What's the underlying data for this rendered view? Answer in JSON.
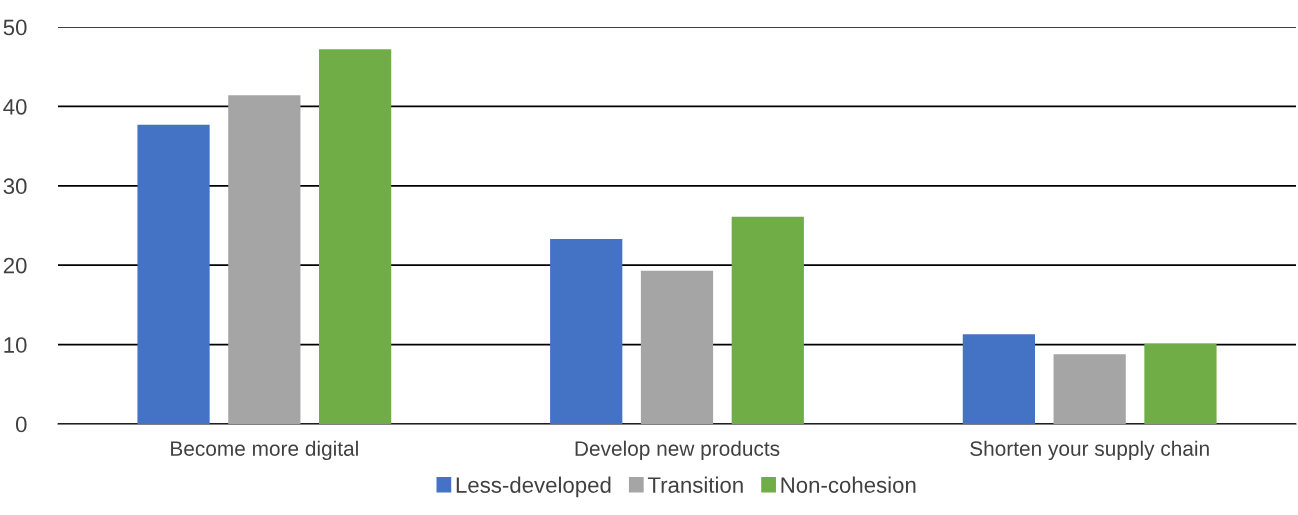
{
  "chart_data": {
    "type": "bar",
    "categories": [
      "Become more digital",
      "Develop new products",
      "Shorten your supply chain"
    ],
    "series": [
      {
        "name": "Less-developed",
        "color": "#4472c4",
        "values": [
          37.7,
          23.3,
          11.3
        ]
      },
      {
        "name": "Transition",
        "color": "#a5a5a5",
        "values": [
          41.4,
          19.3,
          8.8
        ]
      },
      {
        "name": "Non-cohesion",
        "color": "#70ad47",
        "values": [
          47.2,
          26.1,
          10.1
        ]
      }
    ],
    "ylim": [
      0,
      50
    ],
    "yticks": [
      0,
      10,
      20,
      30,
      40,
      50
    ],
    "grid": "y",
    "legend": "bottom"
  }
}
